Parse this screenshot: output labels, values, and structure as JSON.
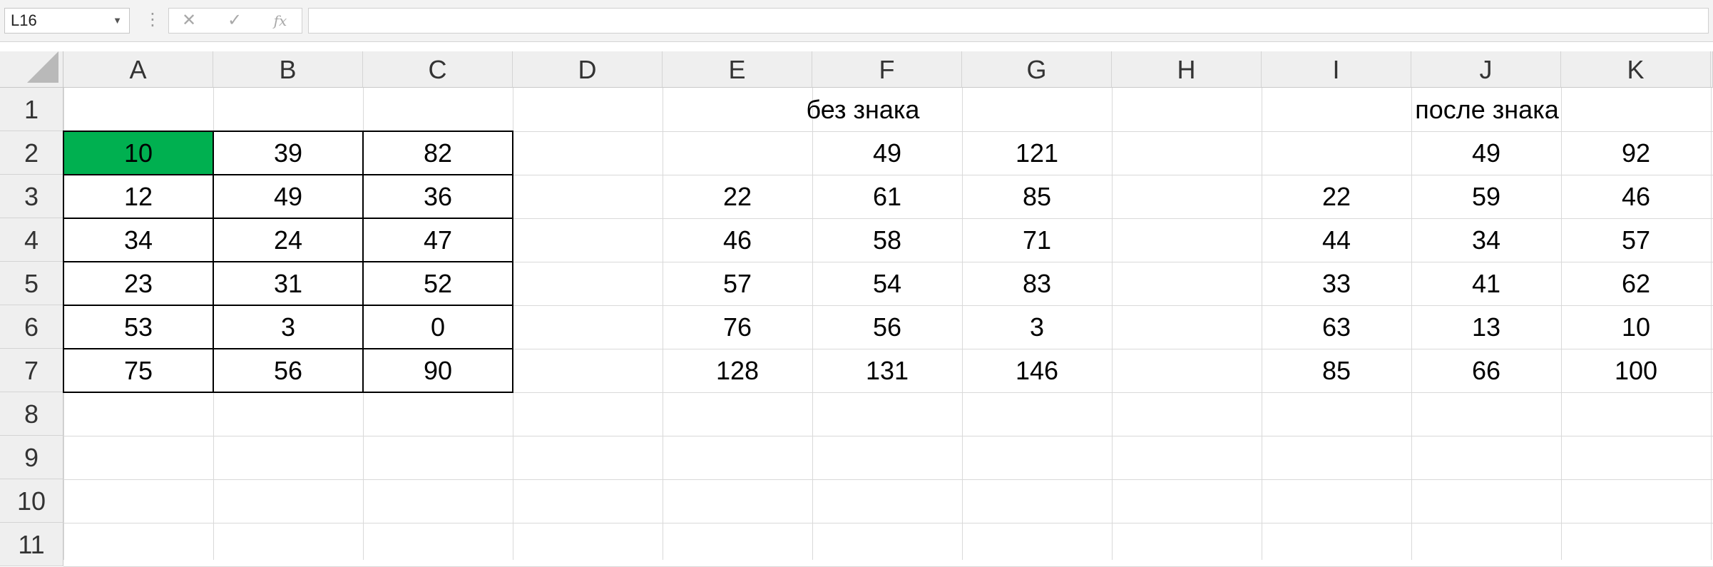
{
  "formula_bar": {
    "name_box": "L16",
    "cancel_glyph": "✕",
    "enter_glyph": "✓",
    "function_glyph": "fx",
    "formula": ""
  },
  "columns": [
    "A",
    "B",
    "C",
    "D",
    "E",
    "F",
    "G",
    "H",
    "I",
    "J",
    "K"
  ],
  "rows": [
    "1",
    "2",
    "3",
    "4",
    "5",
    "6",
    "7",
    "8",
    "9",
    "10",
    "11"
  ],
  "selected_cell": "A2",
  "accent_fill": "#00b050",
  "block_a": {
    "header_row": "",
    "values": [
      [
        "10",
        "39",
        "82"
      ],
      [
        "12",
        "49",
        "36"
      ],
      [
        "34",
        "24",
        "47"
      ],
      [
        "23",
        "31",
        "52"
      ],
      [
        "53",
        "3",
        "0"
      ],
      [
        "75",
        "56",
        "90"
      ]
    ]
  },
  "block_b": {
    "title": "без знака",
    "values": [
      [
        "",
        "49",
        "121"
      ],
      [
        "22",
        "61",
        "85"
      ],
      [
        "46",
        "58",
        "71"
      ],
      [
        "57",
        "54",
        "83"
      ],
      [
        "76",
        "56",
        "3"
      ],
      [
        "128",
        "131",
        "146"
      ]
    ]
  },
  "block_c": {
    "title": "после знака",
    "values": [
      [
        "",
        "49",
        "92"
      ],
      [
        "22",
        "59",
        "46"
      ],
      [
        "44",
        "34",
        "57"
      ],
      [
        "33",
        "41",
        "62"
      ],
      [
        "63",
        "13",
        "10"
      ],
      [
        "85",
        "66",
        "100"
      ]
    ]
  }
}
